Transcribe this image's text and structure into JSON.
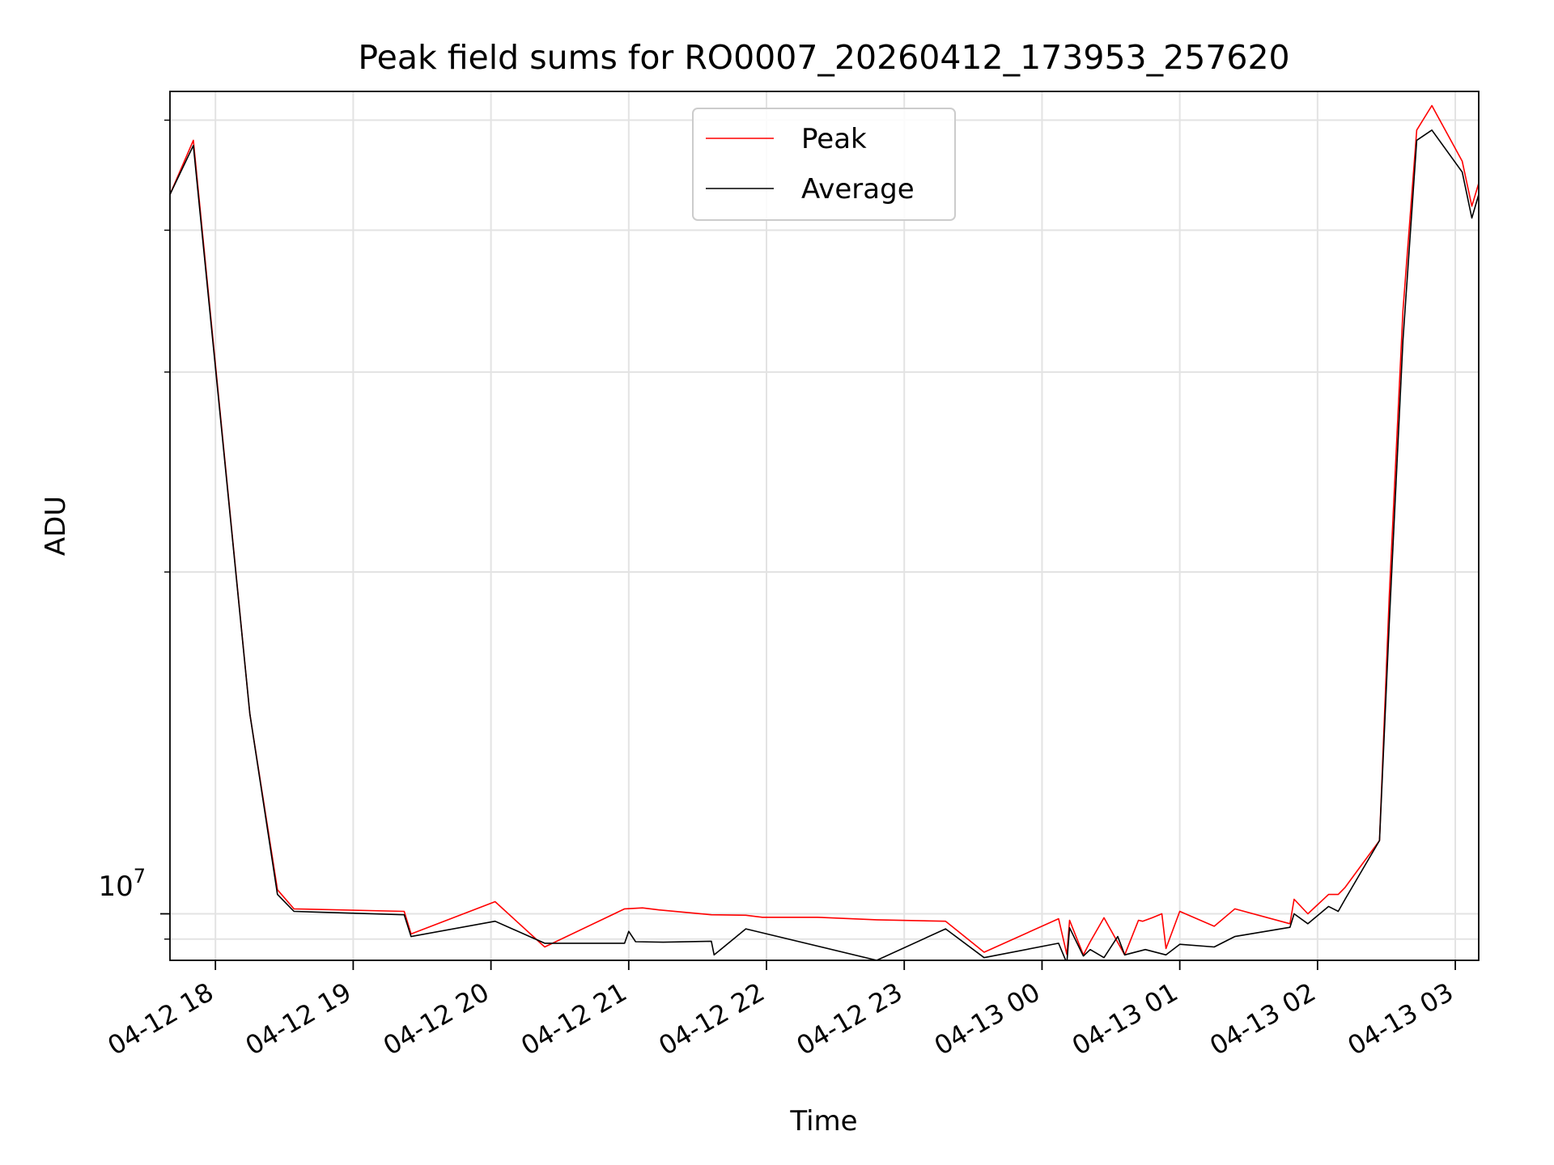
{
  "chart_data": {
    "type": "line",
    "title": "Peak field sums for RO0007_20260412_173953_257620",
    "xlabel": "Time",
    "ylabel": "ADU",
    "yscale": "log",
    "grid": true,
    "legend_position": "top-center",
    "x_unit": "hours since 04-12 00:00",
    "xlim": [
      17.67,
      27.17
    ],
    "ylim": [
      9100000,
      53000000
    ],
    "xticks": [
      {
        "value": 18,
        "label": "04-12 18"
      },
      {
        "value": 19,
        "label": "04-12 19"
      },
      {
        "value": 20,
        "label": "04-12 20"
      },
      {
        "value": 21,
        "label": "04-12 21"
      },
      {
        "value": 22,
        "label": "04-12 22"
      },
      {
        "value": 23,
        "label": "04-12 23"
      },
      {
        "value": 24,
        "label": "04-13 00"
      },
      {
        "value": 25,
        "label": "04-13 01"
      },
      {
        "value": 26,
        "label": "04-13 02"
      },
      {
        "value": 27,
        "label": "04-13 03"
      }
    ],
    "ytick_major": {
      "value": 10000000,
      "label_base": "10",
      "label_exp": "7"
    },
    "ytick_minor": [
      9500000,
      20000000,
      30000000,
      40000000,
      50000000
    ],
    "series": [
      {
        "name": "Peak",
        "color": "#ff0000",
        "points": [
          [
            17.67,
            43000000
          ],
          [
            17.84,
            48000000
          ],
          [
            18.25,
            15000000
          ],
          [
            18.45,
            10500000
          ],
          [
            18.57,
            10100000
          ],
          [
            19.37,
            10050000
          ],
          [
            19.42,
            9600000
          ],
          [
            20.03,
            10250000
          ],
          [
            20.39,
            9350000
          ],
          [
            20.97,
            10100000
          ],
          [
            21.1,
            10120000
          ],
          [
            21.22,
            10080000
          ],
          [
            21.6,
            9980000
          ],
          [
            21.85,
            9970000
          ],
          [
            21.97,
            9930000
          ],
          [
            22.37,
            9930000
          ],
          [
            22.8,
            9880000
          ],
          [
            23.3,
            9850000
          ],
          [
            23.58,
            9250000
          ],
          [
            24.12,
            9900000
          ],
          [
            24.18,
            9210000
          ],
          [
            24.2,
            9870000
          ],
          [
            24.3,
            9200000
          ],
          [
            24.35,
            9450000
          ],
          [
            24.45,
            9920000
          ],
          [
            24.6,
            9200000
          ],
          [
            24.7,
            9870000
          ],
          [
            24.73,
            9850000
          ],
          [
            24.8,
            9920000
          ],
          [
            24.87,
            10000000
          ],
          [
            24.9,
            9320000
          ],
          [
            25.0,
            10050000
          ],
          [
            25.25,
            9750000
          ],
          [
            25.4,
            10100000
          ],
          [
            25.8,
            9800000
          ],
          [
            25.83,
            10300000
          ],
          [
            25.93,
            10000000
          ],
          [
            26.08,
            10400000
          ],
          [
            26.15,
            10400000
          ],
          [
            26.2,
            10550000
          ],
          [
            26.45,
            11600000
          ],
          [
            26.52,
            19000000
          ],
          [
            26.62,
            34000000
          ],
          [
            26.72,
            49000000
          ],
          [
            26.83,
            51500000
          ],
          [
            27.05,
            46000000
          ],
          [
            27.12,
            42000000
          ],
          [
            27.17,
            44000000
          ]
        ]
      },
      {
        "name": "Average",
        "color": "#000000",
        "points": [
          [
            17.67,
            43000000
          ],
          [
            17.84,
            47500000
          ],
          [
            18.25,
            15000000
          ],
          [
            18.45,
            10400000
          ],
          [
            18.57,
            10050000
          ],
          [
            19.37,
            9980000
          ],
          [
            19.42,
            9550000
          ],
          [
            20.03,
            9850000
          ],
          [
            20.39,
            9420000
          ],
          [
            20.97,
            9420000
          ],
          [
            21.0,
            9650000
          ],
          [
            21.05,
            9450000
          ],
          [
            21.25,
            9440000
          ],
          [
            21.6,
            9460000
          ],
          [
            21.62,
            9200000
          ],
          [
            21.85,
            9700000
          ],
          [
            22.8,
            9100000
          ],
          [
            23.3,
            9700000
          ],
          [
            23.58,
            9150000
          ],
          [
            24.12,
            9420000
          ],
          [
            24.18,
            9050000
          ],
          [
            24.2,
            9720000
          ],
          [
            24.3,
            9180000
          ],
          [
            24.35,
            9300000
          ],
          [
            24.45,
            9150000
          ],
          [
            24.55,
            9550000
          ],
          [
            24.6,
            9200000
          ],
          [
            24.75,
            9300000
          ],
          [
            24.9,
            9200000
          ],
          [
            25.0,
            9400000
          ],
          [
            25.25,
            9350000
          ],
          [
            25.4,
            9550000
          ],
          [
            25.8,
            9730000
          ],
          [
            25.83,
            10000000
          ],
          [
            25.93,
            9800000
          ],
          [
            26.08,
            10150000
          ],
          [
            26.15,
            10050000
          ],
          [
            26.2,
            10300000
          ],
          [
            26.45,
            11600000
          ],
          [
            26.52,
            18000000
          ],
          [
            26.62,
            32000000
          ],
          [
            26.72,
            48000000
          ],
          [
            26.83,
            49000000
          ],
          [
            27.05,
            45000000
          ],
          [
            27.12,
            41000000
          ],
          [
            27.17,
            43000000
          ]
        ]
      }
    ]
  }
}
